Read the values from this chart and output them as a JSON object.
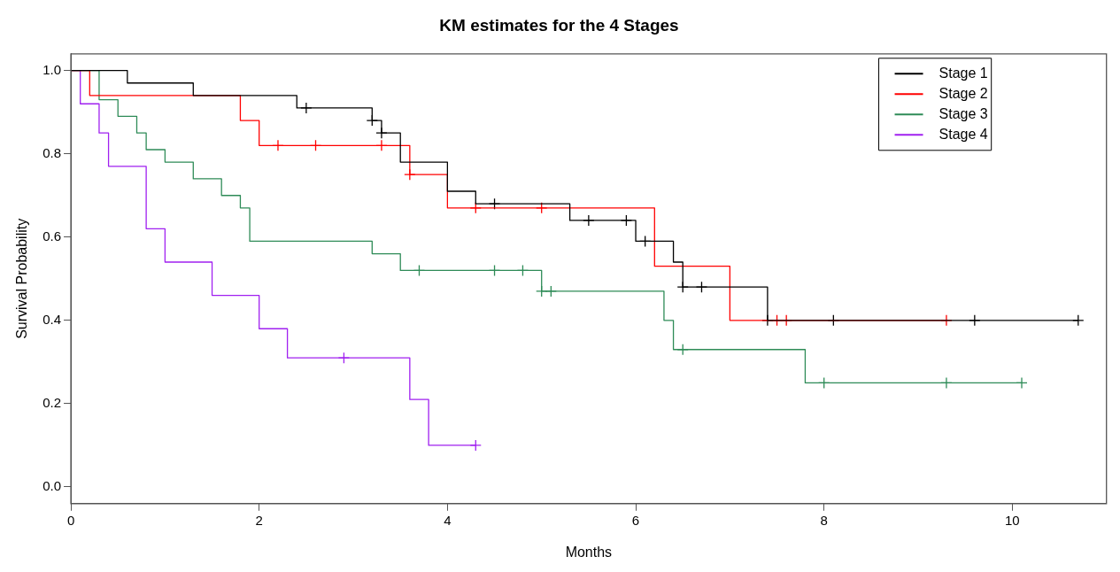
{
  "chart_data": {
    "type": "step",
    "title": "KM estimates for the 4 Stages",
    "xlabel": "Months",
    "ylabel": "Survival Probability",
    "xlim": [
      0,
      11
    ],
    "xticks": [
      0,
      2,
      4,
      6,
      8,
      10
    ],
    "ylim": [
      -0.04,
      1.04
    ],
    "yticks": [
      {
        "value": 0,
        "label": "0.0"
      },
      0.2,
      0.4,
      0.6,
      0.8,
      {
        "value": 1,
        "label": "1.0"
      }
    ],
    "grid": false,
    "legend": "top right",
    "line_style": "solid",
    "series": [
      {
        "name": "Stage 1",
        "marker": "none",
        "color": "#000000",
        "x": [
          0,
          0.6,
          1.3,
          2.4,
          3.2,
          3.3,
          3.5,
          4.0,
          4.3,
          5.3,
          6.0,
          6.4,
          6.5,
          7.4,
          10.7
        ],
        "values": [
          1,
          0.97,
          0.94,
          0.91,
          0.88,
          0.85,
          0.78,
          0.71,
          0.68,
          0.64,
          0.59,
          0.54,
          0.48,
          0.4,
          0.4
        ]
      },
      {
        "name": "Stage 2",
        "marker": "none",
        "color": "#ff0000",
        "x": [
          0,
          0.2,
          1.8,
          2.0,
          3.6,
          4.0,
          6.2,
          7.0,
          9.3
        ],
        "values": [
          1,
          0.94,
          0.88,
          0.82,
          0.75,
          0.67,
          0.53,
          0.4,
          0.4
        ]
      },
      {
        "name": "Stage 3",
        "marker": "none",
        "color": "#2e8b57",
        "x": [
          0,
          0.3,
          0.5,
          0.7,
          0.8,
          1.0,
          1.3,
          1.6,
          1.8,
          1.9,
          3.2,
          3.5,
          5.0,
          6.3,
          6.4,
          7.8,
          10.1
        ],
        "values": [
          1,
          0.93,
          0.89,
          0.85,
          0.81,
          0.78,
          0.74,
          0.7,
          0.67,
          0.59,
          0.56,
          0.52,
          0.47,
          0.4,
          0.33,
          0.25,
          0.25
        ]
      },
      {
        "name": "Stage 4",
        "marker": "none",
        "color": "#a020f0",
        "x": [
          0,
          0.1,
          0.3,
          0.4,
          0.8,
          1.0,
          1.5,
          2.0,
          2.3,
          3.6,
          3.8,
          4.3
        ],
        "values": [
          1,
          0.92,
          0.85,
          0.77,
          0.62,
          0.54,
          0.46,
          0.38,
          0.31,
          0.21,
          0.1,
          0.1
        ]
      },
      {
        "type": "scatter",
        "marker": "cross",
        "color": "#000000",
        "x": [
          2.5,
          3.2,
          3.3,
          4.5,
          5.5,
          5.9,
          6.1,
          6.5,
          6.7,
          7.4,
          8.1,
          9.6,
          10.7
        ],
        "values": [
          0.91,
          0.88,
          0.85,
          0.68,
          0.64,
          0.64,
          0.59,
          0.48,
          0.48,
          0.4,
          0.4,
          0.4,
          0.4
        ]
      },
      {
        "type": "scatter",
        "marker": "cross",
        "color": "#ff0000",
        "x": [
          2.2,
          2.6,
          3.3,
          3.6,
          4.3,
          5.0,
          7.5,
          7.6,
          9.3
        ],
        "values": [
          0.82,
          0.82,
          0.82,
          0.75,
          0.67,
          0.67,
          0.4,
          0.4,
          0.4
        ]
      },
      {
        "type": "scatter",
        "marker": "cross",
        "color": "#2e8b57",
        "x": [
          3.7,
          4.5,
          4.8,
          5.0,
          5.1,
          6.5,
          8.0,
          9.3,
          10.1
        ],
        "values": [
          0.52,
          0.52,
          0.52,
          0.47,
          0.47,
          0.33,
          0.25,
          0.25,
          0.25
        ]
      },
      {
        "type": "scatter",
        "marker": "cross",
        "color": "#a020f0",
        "x": [
          2.9,
          4.3
        ],
        "values": [
          0.31,
          0.1
        ]
      }
    ]
  }
}
